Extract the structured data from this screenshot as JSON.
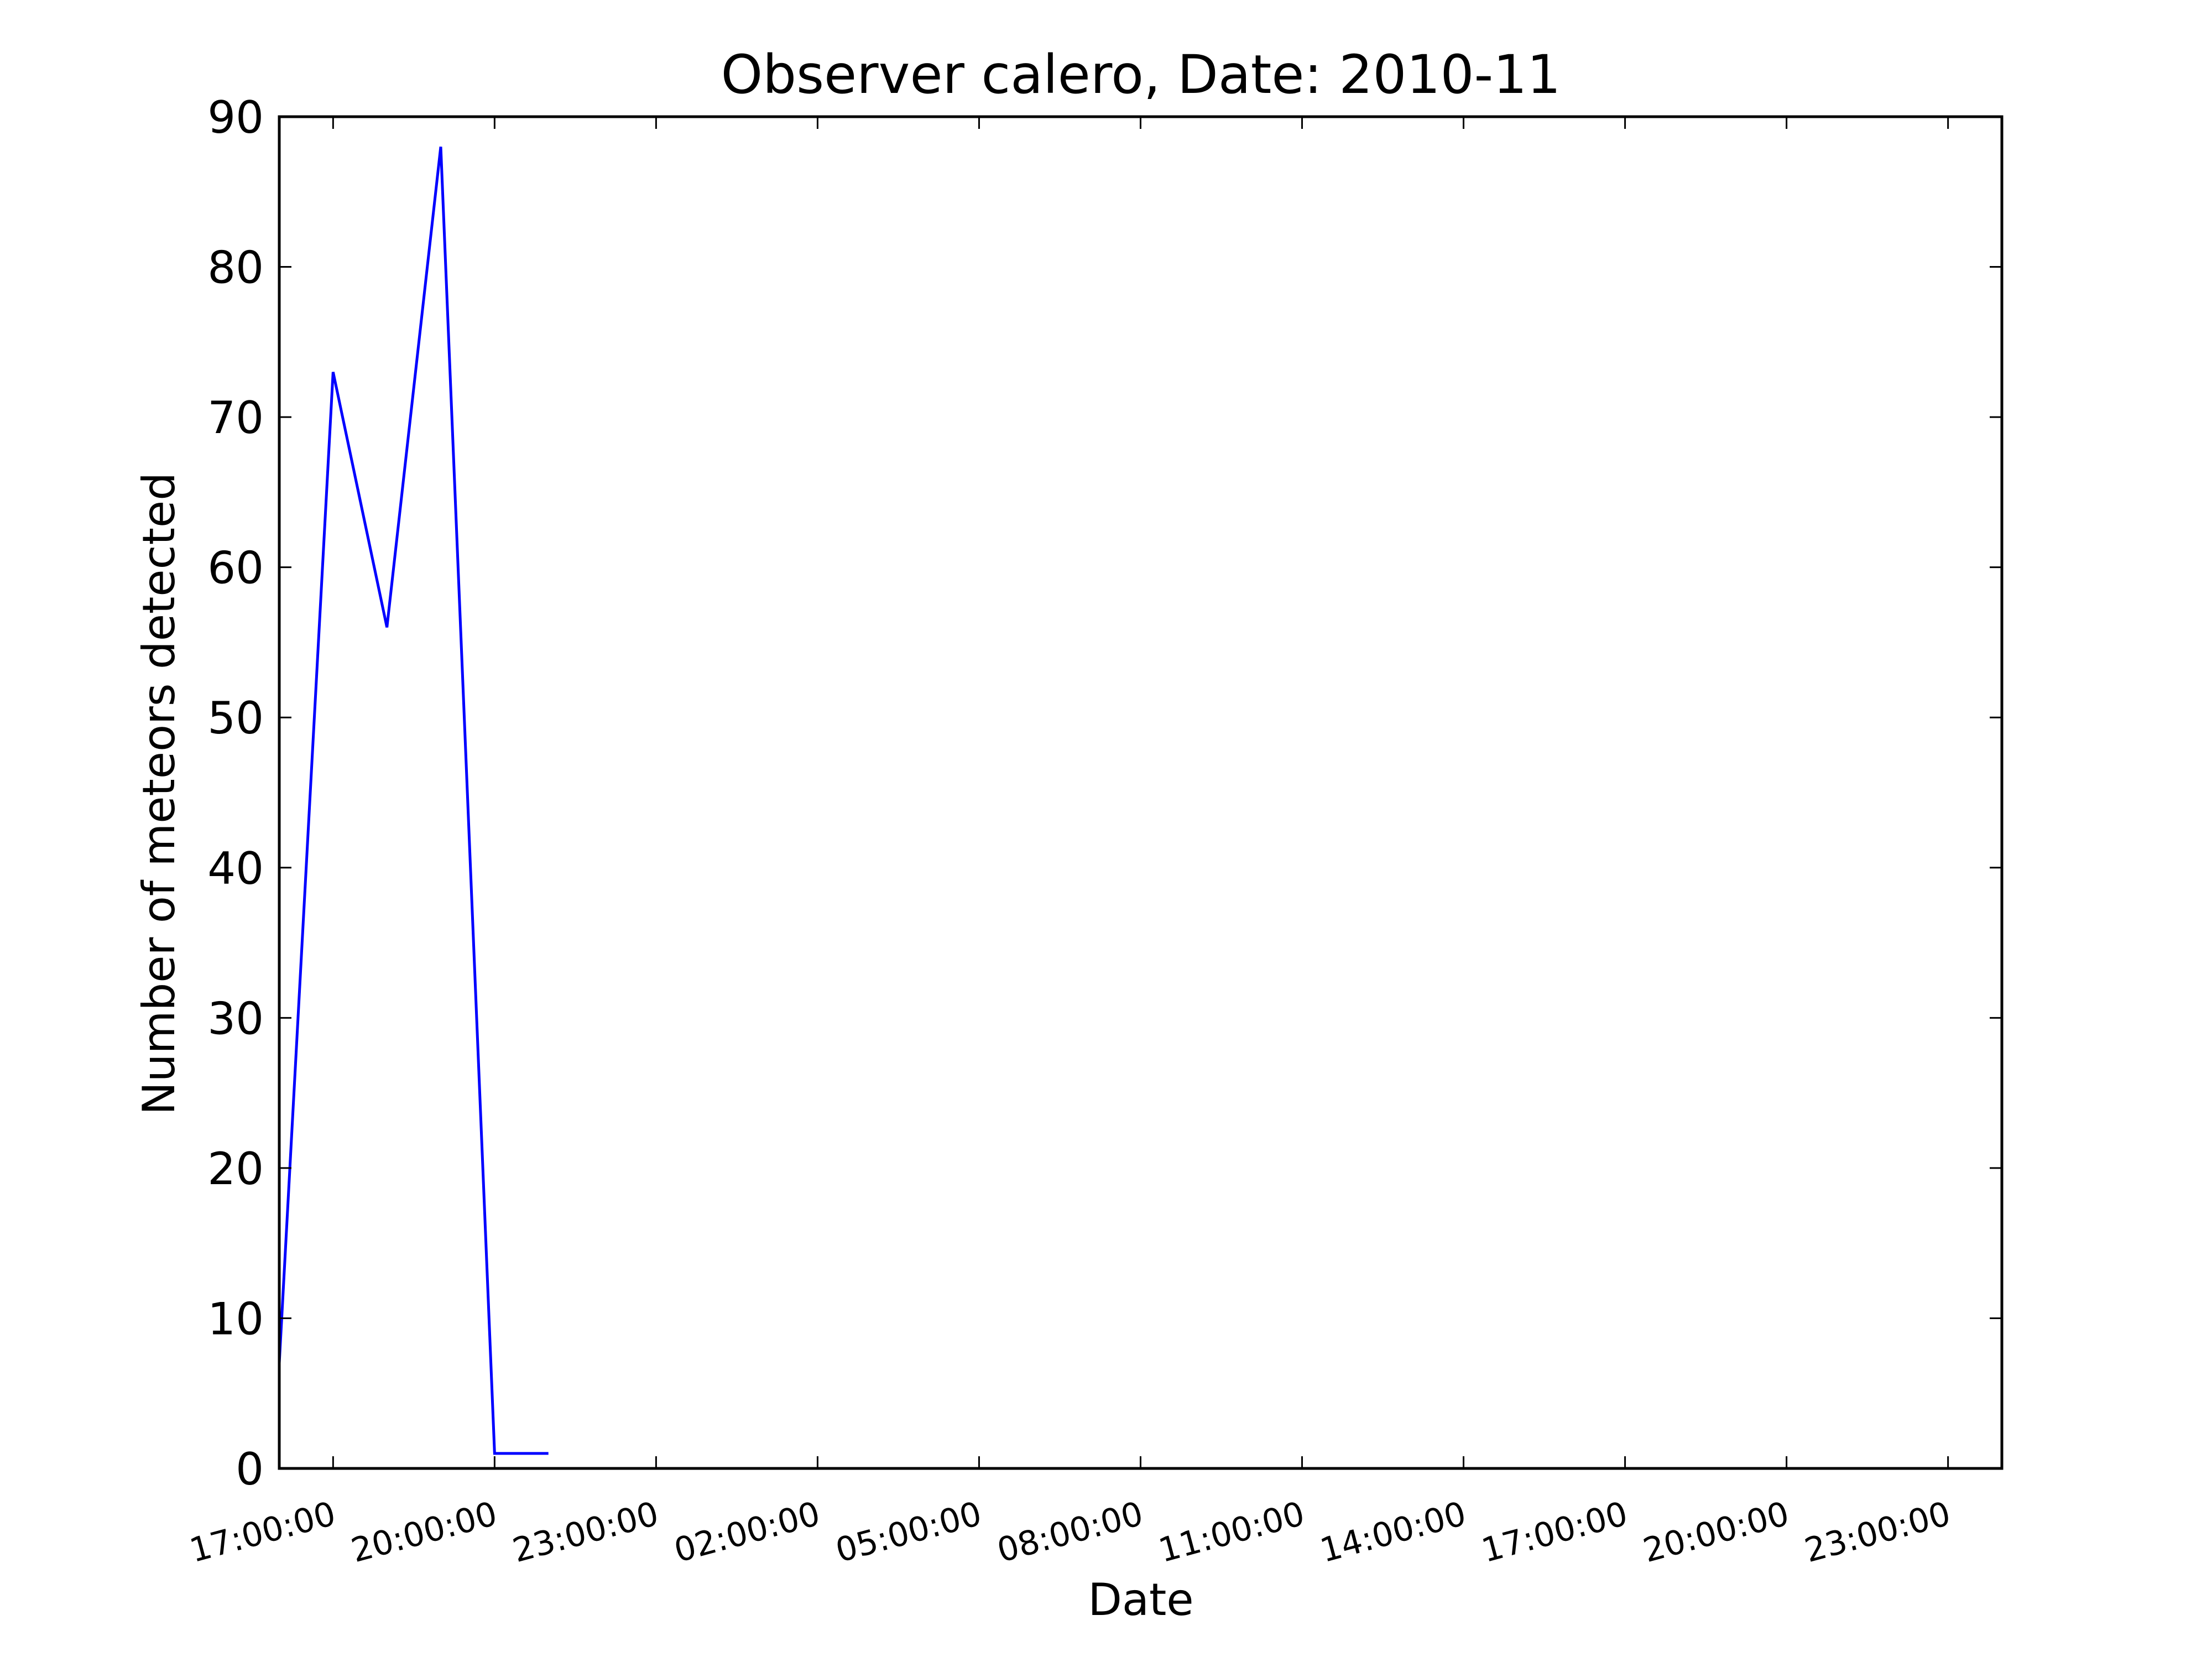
{
  "chart_data": {
    "type": "line",
    "title": "Observer calero, Date: 2010-11",
    "xlabel": "Date",
    "ylabel": "Number of meteors detected",
    "ylim": [
      0,
      90
    ],
    "xlim": [
      "16:00",
      "24:00 (next day)"
    ],
    "y_ticks": [
      "0",
      "10",
      "20",
      "30",
      "40",
      "50",
      "60",
      "70",
      "80",
      "90"
    ],
    "x_ticks": [
      "17:00:00",
      "20:00:00",
      "23:00:00",
      "02:00:00",
      "05:00:00",
      "08:00:00",
      "11:00:00",
      "14:00:00",
      "17:00:00",
      "20:00:00",
      "23:00:00"
    ],
    "grid": false,
    "series": [
      {
        "color": "#0000ff",
        "x": [
          "16:00",
          "17:00",
          "18:00",
          "19:00",
          "20:00",
          "21:00"
        ],
        "y": [
          7,
          73,
          56,
          88,
          1,
          1
        ]
      }
    ]
  }
}
